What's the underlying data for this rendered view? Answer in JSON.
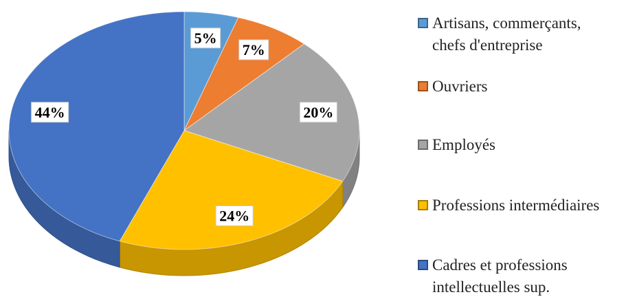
{
  "chart_data": {
    "type": "pie",
    "categories": [
      "Artisans, commerçants, chefs d'entreprise",
      "Ouvriers",
      "Employés",
      "Professions intermédiaires",
      "Cadres et professions intellectuelles sup."
    ],
    "values": [
      5,
      7,
      20,
      24,
      44
    ],
    "value_labels": [
      "5%",
      "7%",
      "20%",
      "24%",
      "44%"
    ],
    "colors": [
      "#5b9bd5",
      "#ed7d31",
      "#a5a5a5",
      "#ffc000",
      "#4472c4"
    ],
    "legend": "right"
  }
}
